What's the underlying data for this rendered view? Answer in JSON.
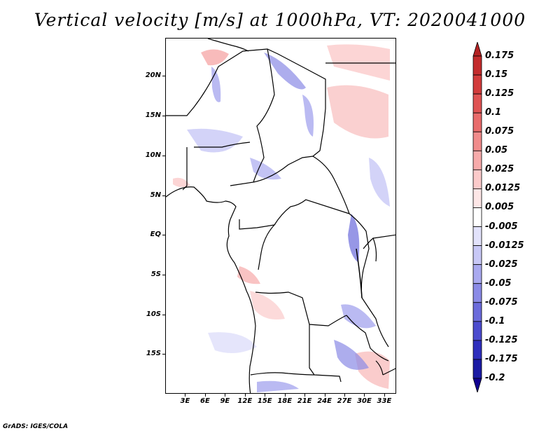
{
  "title": "Vertical velocity [m/s] at 1000hPa, VT: 2020041000",
  "footer": "GrADS: IGES/COLA",
  "lat_labels": [
    "20N",
    "15N",
    "10N",
    "5N",
    "EQ",
    "5S",
    "10S",
    "15S"
  ],
  "lat_values": [
    20,
    15,
    10,
    5,
    0,
    -5,
    -10,
    -15
  ],
  "lon_labels": [
    "3E",
    "6E",
    "9E",
    "12E",
    "15E",
    "18E",
    "21E",
    "24E",
    "27E",
    "30E",
    "33E"
  ],
  "lon_values": [
    3,
    6,
    9,
    12,
    15,
    18,
    21,
    24,
    27,
    30,
    33
  ],
  "lat_range": [
    -20,
    24.8
  ],
  "lon_range": [
    0,
    34.8
  ],
  "colorbar_levels": [
    "0.175",
    "0.15",
    "0.125",
    "0.1",
    "0.075",
    "0.05",
    "0.025",
    "0.0125",
    "0.005",
    "-0.005",
    "-0.0125",
    "-0.025",
    "-0.05",
    "-0.075",
    "-0.1",
    "-0.125",
    "-0.175",
    "-0.2"
  ],
  "colorbar_colors": [
    "#b42223",
    "#c32b2c",
    "#d23b3b",
    "#df5353",
    "#e86b6b",
    "#f08b8b",
    "#f6aaaa",
    "#fbcaca",
    "#fde6e6",
    "#ffffff",
    "#e2e2fb",
    "#c8c8f6",
    "#a9a9ef",
    "#8a8ae6",
    "#6b6bdb",
    "#4b4bce",
    "#2e2ebd",
    "#1b1ba4",
    "#100090"
  ],
  "colors": {
    "positive": "#f08b8b",
    "negative": "#8a8ae6",
    "boundary": "#000000"
  }
}
